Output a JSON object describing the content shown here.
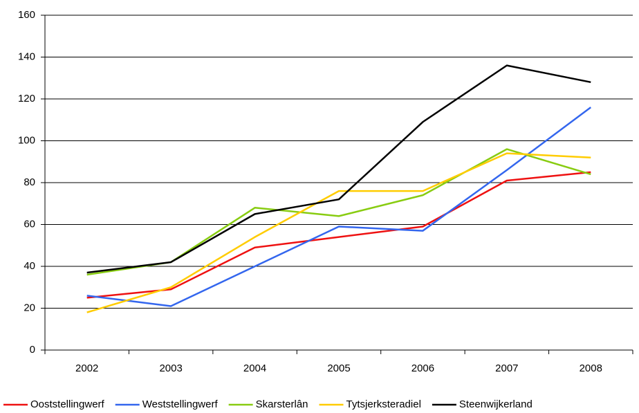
{
  "chart_data": {
    "type": "line",
    "categories": [
      "2002",
      "2003",
      "2004",
      "2005",
      "2006",
      "2007",
      "2008"
    ],
    "series": [
      {
        "name": "Ooststellingwerf",
        "color": "#ee1111",
        "values": [
          25,
          29,
          49,
          54,
          59,
          81,
          85
        ]
      },
      {
        "name": "Weststellingwerf",
        "color": "#3366ee",
        "values": [
          26,
          21,
          40,
          59,
          57,
          86,
          116
        ]
      },
      {
        "name": "Skarsterlân",
        "color": "#88cc11",
        "values": [
          36,
          42,
          68,
          64,
          74,
          96,
          84
        ]
      },
      {
        "name": "Tytsjerksteradiel",
        "color": "#ffcc00",
        "values": [
          18,
          30,
          54,
          76,
          76,
          94,
          92
        ]
      },
      {
        "name": "Steenwijkerland",
        "color": "#000000",
        "values": [
          37,
          42,
          65,
          72,
          109,
          136,
          128
        ]
      }
    ],
    "ylim": [
      0,
      160
    ],
    "yticks": [
      0,
      20,
      40,
      60,
      80,
      100,
      120,
      140,
      160
    ],
    "grid": true,
    "legend": "bottom"
  }
}
